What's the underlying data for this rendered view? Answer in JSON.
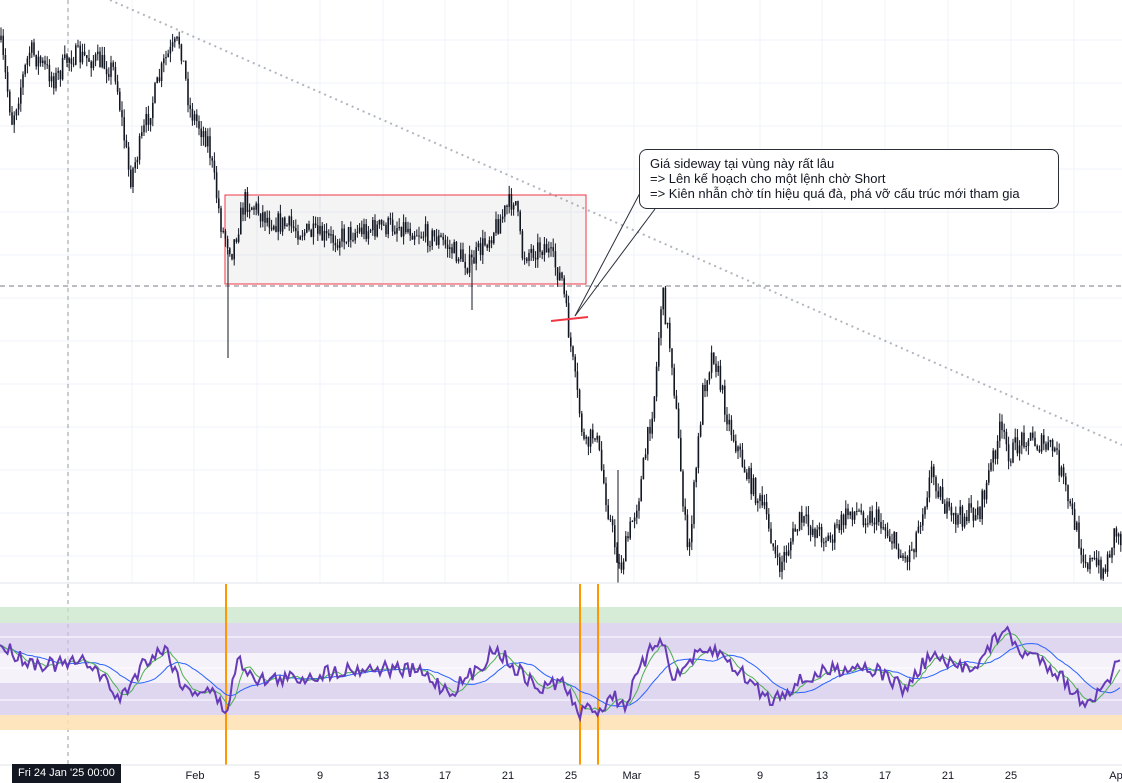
{
  "chart_data": [
    {
      "type": "candlestick",
      "title": "",
      "x_ticks": [
        "Feb",
        "5",
        "9",
        "13",
        "17",
        "21",
        "25",
        "Mar",
        "5",
        "9",
        "13",
        "17",
        "21",
        "25",
        "Ap"
      ],
      "grid": true,
      "annotation": {
        "lines": [
          "Giá sideway tại vùng này rất lâu",
          "=> Lên kế hoạch cho một lệnh chờ Short",
          "=> Kiên nhẫn chờ tín hiệu quá đà, phá vỡ cấu trúc mới tham gia"
        ]
      },
      "drawings": [
        "sideway-range-box",
        "descending-trendline",
        "horizontal-level",
        "breakout-marker"
      ],
      "colors": {
        "candles": "#131722",
        "range_box_border": "#f23645",
        "trendline": "#b2b5be",
        "breakout_marker": "#f23645"
      }
    },
    {
      "type": "line",
      "title": "",
      "bands": [
        "overbought",
        "oversold"
      ],
      "series": [
        {
          "color": "#673ab7"
        },
        {
          "color": "#4caf50"
        },
        {
          "color": "#2962ff"
        }
      ],
      "colors": {
        "upper_band": "#c8e6c9",
        "lower_band": "#ffe0b2",
        "mid_bands": "#d1c4e9",
        "signal_verticals": "#ff9800"
      }
    }
  ],
  "crosshair": {
    "date_label": "Fri 24 Jan '25   00:00"
  }
}
